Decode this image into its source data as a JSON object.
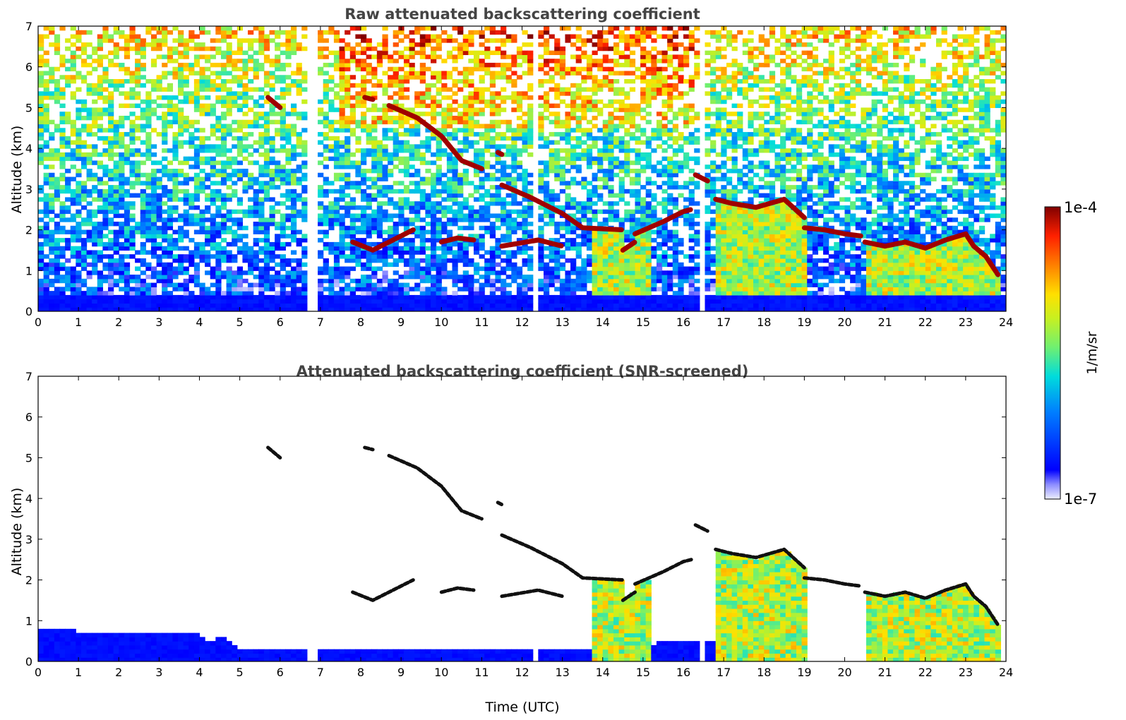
{
  "chart_data": [
    {
      "type": "heatmap",
      "title": "Raw attenuated backscattering coefficient",
      "xlabel": "",
      "ylabel": "Altitude (km)",
      "xlim": [
        0,
        24
      ],
      "ylim": [
        0,
        7
      ],
      "x_ticks": [
        "0",
        "1",
        "2",
        "3",
        "4",
        "5",
        "6",
        "7",
        "8",
        "9",
        "10",
        "11",
        "12",
        "13",
        "14",
        "15",
        "16",
        "17",
        "18",
        "19",
        "20",
        "21",
        "22",
        "23",
        "24"
      ],
      "y_ticks": [
        "0",
        "1",
        "2",
        "3",
        "4",
        "5",
        "6",
        "7"
      ],
      "grid": false,
      "screened": false,
      "layers": [
        {
          "t": [
            5.7,
            6.0
          ],
          "h": [
            5.25,
            5.0
          ]
        },
        {
          "t": [
            8.1,
            8.3
          ],
          "h": [
            5.25,
            5.2
          ]
        },
        {
          "t": [
            8.7,
            9.4,
            10.0,
            10.5,
            11.0
          ],
          "h": [
            5.05,
            4.75,
            4.3,
            3.7,
            3.5
          ]
        },
        {
          "t": [
            11.4,
            11.5
          ],
          "h": [
            3.9,
            3.85
          ]
        },
        {
          "t": [
            11.5,
            12.2,
            13.0,
            13.5,
            14.5
          ],
          "h": [
            3.1,
            2.8,
            2.4,
            2.05,
            2.0
          ]
        },
        {
          "t": [
            14.8,
            15.5,
            16.0,
            16.2
          ],
          "h": [
            1.9,
            2.2,
            2.45,
            2.5
          ]
        },
        {
          "t": [
            16.3,
            16.6
          ],
          "h": [
            3.35,
            3.2
          ]
        },
        {
          "t": [
            16.8,
            17.2,
            17.5,
            17.8,
            18.5,
            19.0
          ],
          "h": [
            2.75,
            2.65,
            2.6,
            2.55,
            2.75,
            2.3
          ]
        },
        {
          "t": [
            19.0,
            19.5,
            20.0,
            20.4
          ],
          "h": [
            2.05,
            2.0,
            1.9,
            1.85
          ]
        },
        {
          "t": [
            20.5,
            21.0,
            21.5,
            22.0,
            22.5,
            23.0,
            23.2,
            23.5,
            23.8
          ],
          "h": [
            1.7,
            1.6,
            1.7,
            1.55,
            1.75,
            1.9,
            1.6,
            1.35,
            0.9
          ]
        },
        {
          "t": [
            7.8,
            8.3,
            9.3
          ],
          "h": [
            1.7,
            1.5,
            2.0
          ]
        },
        {
          "t": [
            10.0,
            10.4,
            10.8
          ],
          "h": [
            1.7,
            1.8,
            1.75
          ]
        },
        {
          "t": [
            11.5,
            12.4,
            13.0
          ],
          "h": [
            1.6,
            1.75,
            1.6
          ]
        },
        {
          "t": [
            14.5,
            14.8
          ],
          "h": [
            1.5,
            1.7
          ]
        }
      ],
      "cloud_columns": [
        [
          13.7,
          15.2
        ],
        [
          16.8,
          19.0
        ],
        [
          20.5,
          23.8
        ]
      ],
      "data_gaps": [
        6.7,
        6.8,
        12.3,
        16.5
      ]
    },
    {
      "type": "heatmap",
      "title": "Attenuated backscattering coefficient (SNR-screened)",
      "xlabel": "Time (UTC)",
      "ylabel": "Altitude (km)",
      "xlim": [
        0,
        24
      ],
      "ylim": [
        0,
        7
      ],
      "x_ticks": [
        "0",
        "1",
        "2",
        "3",
        "4",
        "5",
        "6",
        "7",
        "8",
        "9",
        "10",
        "11",
        "12",
        "13",
        "14",
        "15",
        "16",
        "17",
        "18",
        "19",
        "20",
        "21",
        "22",
        "23",
        "24"
      ],
      "y_ticks": [
        "0",
        "1",
        "2",
        "3",
        "4",
        "5",
        "6",
        "7"
      ],
      "grid": false,
      "screened": true,
      "boundary_layer_top_km": {
        "t": [
          0,
          1,
          2,
          3,
          4,
          4.3,
          4.6,
          5.0,
          6,
          8,
          10,
          12,
          13.7,
          15.3,
          16.0,
          16.8
        ],
        "h": [
          0.8,
          0.75,
          0.7,
          0.68,
          0.65,
          0.5,
          0.6,
          0.35,
          0.35,
          0.35,
          0.3,
          0.3,
          0.3,
          0.45,
          0.5,
          0.55
        ]
      }
    }
  ],
  "colorbar": {
    "label": "1/m/sr",
    "max_label": "1e-4",
    "min_label": "1e-7",
    "scale": "log",
    "colormap": "jet"
  },
  "colors": {
    "axis": "#000000",
    "title": "#444444"
  }
}
